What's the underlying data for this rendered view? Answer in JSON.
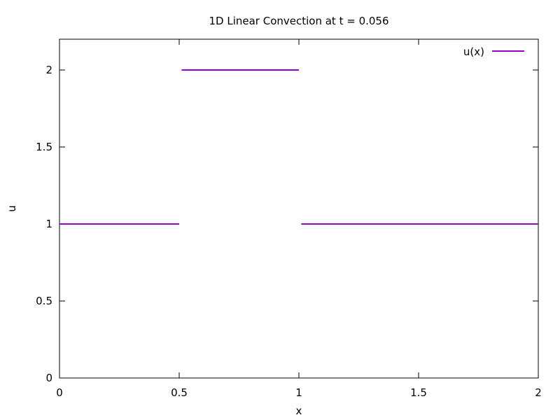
{
  "chart_data": {
    "type": "line",
    "title": "1D Linear Convection at t = 0.056",
    "xlabel": "x",
    "ylabel": "u",
    "xlim": [
      0,
      2
    ],
    "ylim": [
      0,
      2.2
    ],
    "xticks": [
      {
        "value": 0,
        "label": "0"
      },
      {
        "value": 0.5,
        "label": "0.5"
      },
      {
        "value": 1,
        "label": "1"
      },
      {
        "value": 1.5,
        "label": "1.5"
      },
      {
        "value": 2,
        "label": "2"
      }
    ],
    "yticks": [
      {
        "value": 0,
        "label": "0"
      },
      {
        "value": 0.5,
        "label": "0.5"
      },
      {
        "value": 1,
        "label": "1"
      },
      {
        "value": 1.5,
        "label": "1.5"
      },
      {
        "value": 2,
        "label": "2"
      }
    ],
    "grid": false,
    "legend_position": "top-right",
    "series": [
      {
        "name": "u(x)",
        "color": "#9400d3",
        "segments": [
          [
            [
              0,
              1
            ],
            [
              0.5,
              1
            ]
          ],
          [
            [
              0.51,
              2
            ],
            [
              1.0,
              2
            ]
          ],
          [
            [
              1.01,
              1
            ],
            [
              2.0,
              1
            ]
          ]
        ]
      }
    ]
  }
}
